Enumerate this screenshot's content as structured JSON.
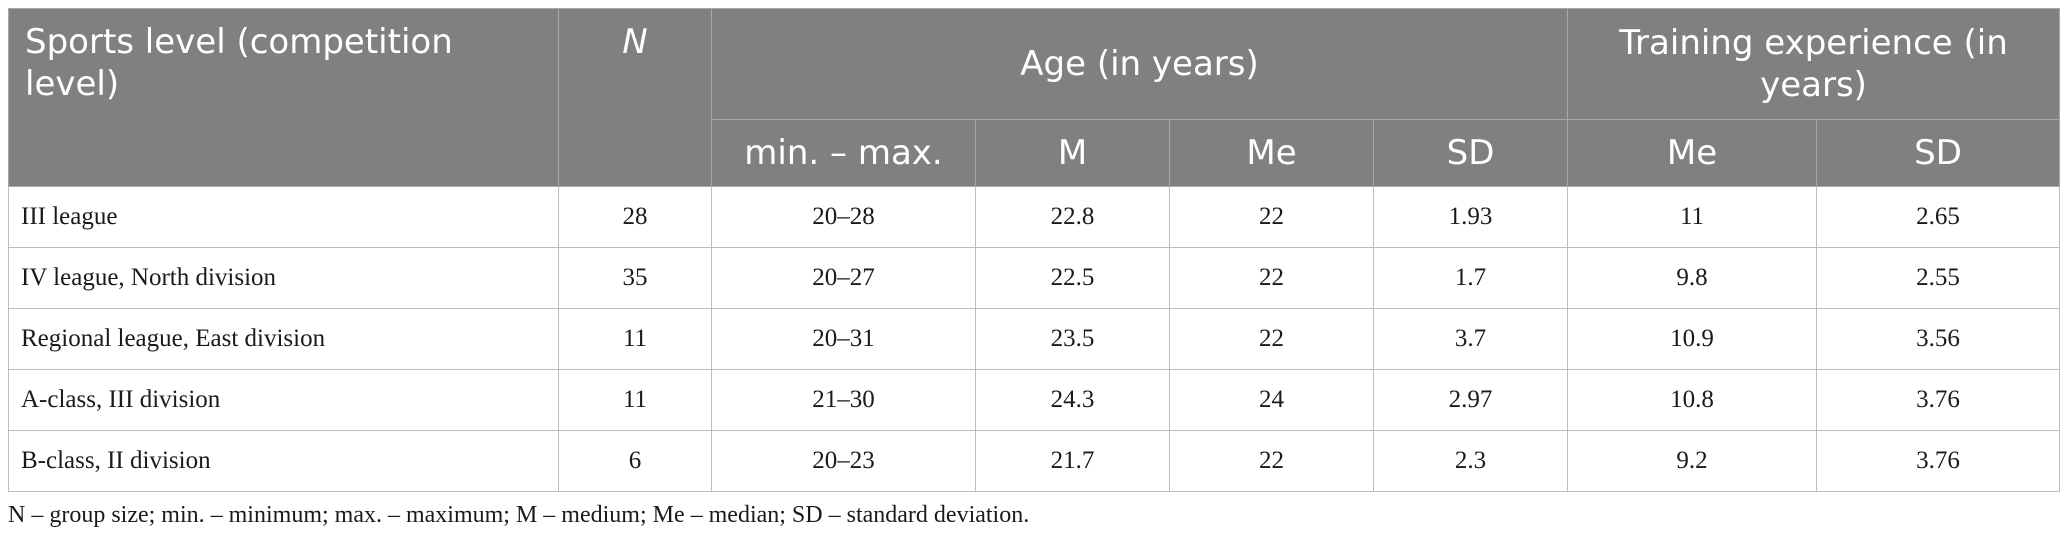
{
  "table": {
    "headers": {
      "level": "Sports level (competition level)",
      "n": "N",
      "age_group": "Age (in years)",
      "training_group": "Training experience (in years)",
      "age_range": "min. – max.",
      "age_m": "M",
      "age_me": "Me",
      "age_sd": "SD",
      "train_me": "Me",
      "train_sd": "SD"
    },
    "rows": [
      {
        "level": "III league",
        "n": "28",
        "range": "20–28",
        "m": "22.8",
        "me": "22",
        "sd": "1.93",
        "tme": "11",
        "tsd": "2.65"
      },
      {
        "level": "IV league, North division",
        "n": "35",
        "range": "20–27",
        "m": "22.5",
        "me": "22",
        "sd": "1.7",
        "tme": "9.8",
        "tsd": "2.55"
      },
      {
        "level": "Regional league, East division",
        "n": "11",
        "range": "20–31",
        "m": "23.5",
        "me": "22",
        "sd": "3.7",
        "tme": "10.9",
        "tsd": "3.56"
      },
      {
        "level": "A-class, III division",
        "n": "11",
        "range": "21–30",
        "m": "24.3",
        "me": "24",
        "sd": "2.97",
        "tme": "10.8",
        "tsd": "3.76"
      },
      {
        "level": "B-class, II division",
        "n": "6",
        "range": "20–23",
        "m": "21.7",
        "me": "22",
        "sd": "2.3",
        "tme": "9.2",
        "tsd": "3.76"
      }
    ]
  },
  "footnote": "N – group size; min. – minimum; max. – maximum; M – medium; Me – median; SD – standard deviation.",
  "colors": {
    "header_bg": "#808080",
    "header_text": "#ffffff",
    "grid": "#bdbdbd"
  }
}
